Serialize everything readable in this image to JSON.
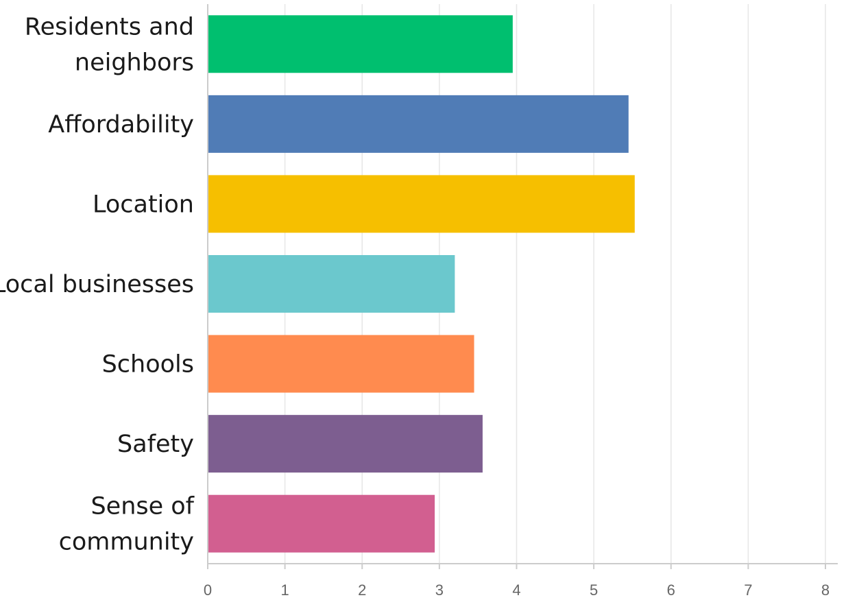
{
  "chart_data": {
    "type": "bar",
    "orientation": "horizontal",
    "title": "",
    "xlabel": "",
    "ylabel": "",
    "categories": [
      "Residents and neighbors",
      "Affordability",
      "Location",
      "Local businesses",
      "Schools",
      "Safety",
      "Sense of community"
    ],
    "values": [
      3.95,
      5.45,
      5.53,
      3.2,
      3.45,
      3.56,
      2.94
    ],
    "colors": [
      "#00bf6f",
      "#507cb6",
      "#f6bf00",
      "#6bc8cd",
      "#ff8b4f",
      "#7d5e90",
      "#d25f90"
    ],
    "xlim": [
      0,
      8
    ],
    "x_ticks": [
      "0",
      "1",
      "2",
      "3",
      "4",
      "5",
      "6",
      "7",
      "8"
    ],
    "grid": "vertical",
    "legend": "none"
  }
}
